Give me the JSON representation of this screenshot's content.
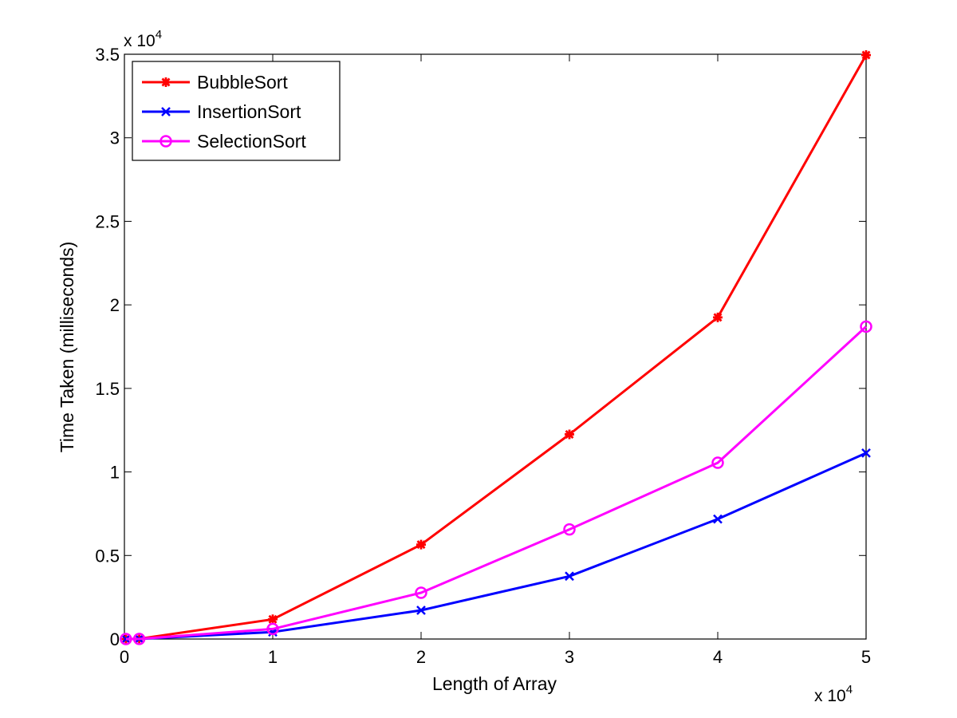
{
  "chart_data": {
    "type": "line",
    "title": "",
    "xlabel": "Length of Array",
    "ylabel": "Time Taken (milliseconds)",
    "x_multiplier_label": {
      "base": "x 10",
      "exp": "4"
    },
    "y_multiplier_label": {
      "base": "x 10",
      "exp": "4"
    },
    "xlim": [
      0,
      50000
    ],
    "ylim": [
      0,
      35000
    ],
    "x_ticks": [
      0,
      10000,
      20000,
      30000,
      40000,
      50000
    ],
    "x_tick_labels": [
      "0",
      "1",
      "2",
      "3",
      "4",
      "5"
    ],
    "y_ticks": [
      0,
      5000,
      10000,
      15000,
      20000,
      25000,
      30000,
      35000
    ],
    "y_tick_labels": [
      "0",
      "0.5",
      "1",
      "1.5",
      "2",
      "2.5",
      "3",
      "3.5"
    ],
    "grid": false,
    "legend_position": "top-left",
    "x": [
      100,
      1000,
      10000,
      20000,
      30000,
      40000,
      50000
    ],
    "series": [
      {
        "name": "BubbleSort",
        "color": "#ff0000",
        "marker": "asterisk",
        "values": [
          1,
          12,
          1180,
          5650,
          12250,
          19250,
          34950
        ]
      },
      {
        "name": "InsertionSort",
        "color": "#0000ff",
        "marker": "x",
        "values": [
          0,
          4,
          420,
          1720,
          3760,
          7180,
          11130
        ]
      },
      {
        "name": "SelectionSort",
        "color": "#ff00ff",
        "marker": "circle",
        "values": [
          1,
          6,
          600,
          2770,
          6560,
          10550,
          18700
        ]
      }
    ]
  }
}
